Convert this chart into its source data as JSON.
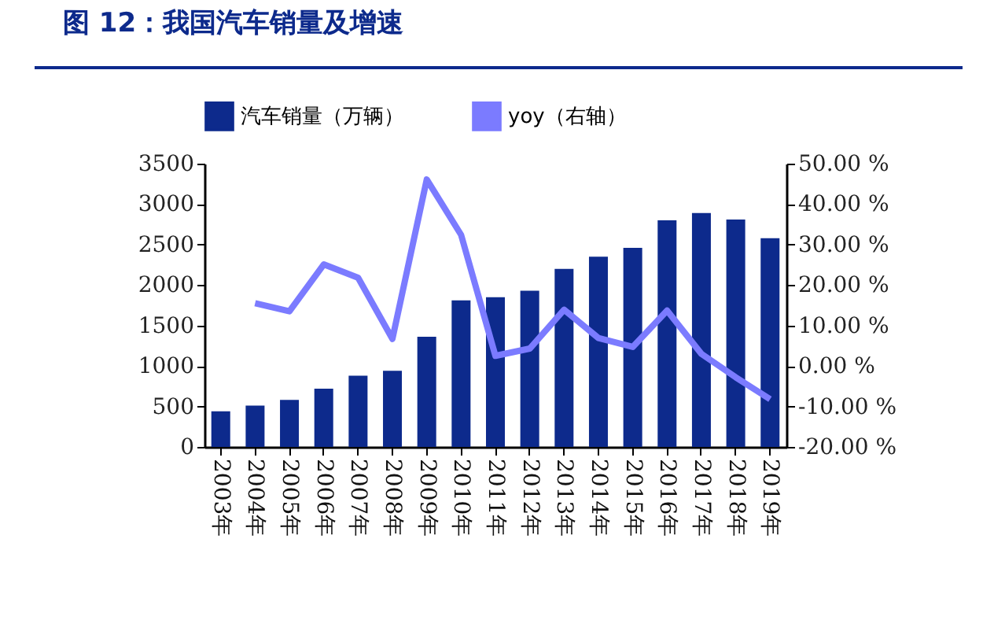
{
  "chart_data": {
    "type": "bar",
    "title": "图 12：我国汽车销量及增速",
    "categories": [
      "2003年",
      "2004年",
      "2005年",
      "2006年",
      "2007年",
      "2008年",
      "2009年",
      "2010年",
      "2011年",
      "2012年",
      "2013年",
      "2014年",
      "2015年",
      "2016年",
      "2017年",
      "2018年",
      "2019年"
    ],
    "series": [
      {
        "name": "汽车销量（万辆）",
        "color": "#0d2a8c",
        "values": [
          440,
          510,
          580,
          720,
          880,
          940,
          1360,
          1810,
          1850,
          1930,
          2200,
          2350,
          2460,
          2800,
          2890,
          2810,
          2580
        ]
      },
      {
        "name": "yoy（右轴）",
        "type": "line",
        "axis": "y2",
        "color": "#7b7bff",
        "values": [
          null,
          15.5,
          13.5,
          25.1,
          21.8,
          6.7,
          46.1,
          32.4,
          2.5,
          4.3,
          13.9,
          6.9,
          4.7,
          13.7,
          3.0,
          -2.8,
          -8.2
        ]
      }
    ],
    "ylim": [
      0,
      3500
    ],
    "yticks": [
      0,
      500,
      1000,
      1500,
      2000,
      2500,
      3000,
      3500
    ],
    "y2lim": [
      -20,
      50
    ],
    "y2ticks": [
      {
        "value": -20,
        "label": "-20.00 %"
      },
      {
        "value": -10,
        "label": "-10.00 %"
      },
      {
        "value": 0,
        "label": "0.00 %"
      },
      {
        "value": 10,
        "label": "10.00 %"
      },
      {
        "value": 20,
        "label": "20.00 %"
      },
      {
        "value": 30,
        "label": "30.00 %"
      },
      {
        "value": 40,
        "label": "40.00 %"
      },
      {
        "value": 50,
        "label": "50.00 %"
      }
    ],
    "legend": "top",
    "grid": false,
    "marker": "none"
  }
}
